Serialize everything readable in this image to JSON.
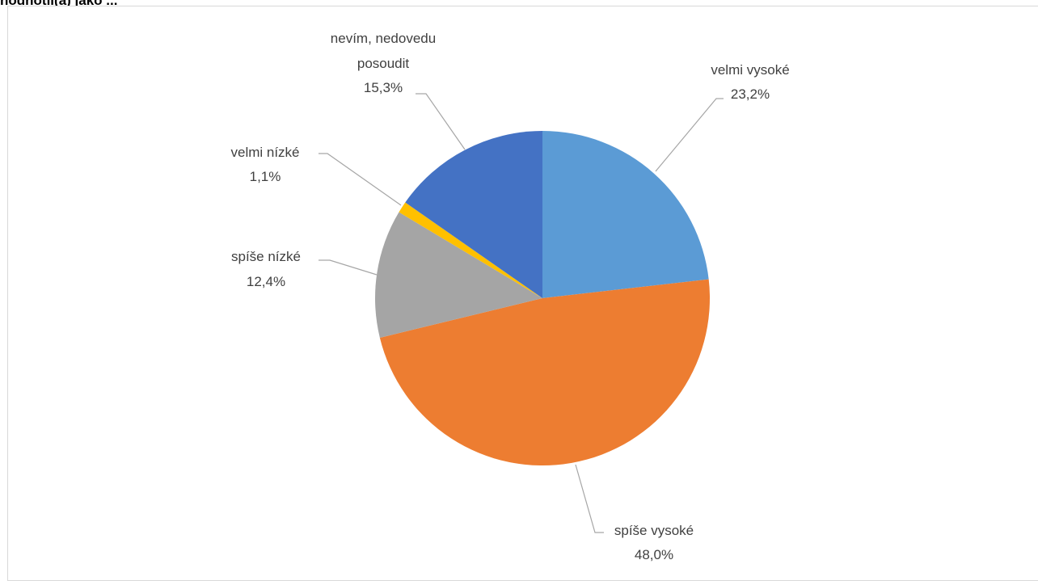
{
  "page": {
    "title": "hodnotil(a) jako ..."
  },
  "chart_data": {
    "type": "pie",
    "start_angle_deg": 0,
    "direction": "clockwise",
    "slices": [
      {
        "label": "velmi vysoké",
        "value": 23.2,
        "value_label": "23,2%",
        "color": "#5b9bd5"
      },
      {
        "label": "spíše vysoké",
        "value": 48.0,
        "value_label": "48,0%",
        "color": "#ed7d31"
      },
      {
        "label": "spíše nízké",
        "value": 12.4,
        "value_label": "12,4%",
        "color": "#a5a5a5"
      },
      {
        "label": "velmi nízké",
        "value": 1.1,
        "value_label": "1,1%",
        "color": "#ffc000"
      },
      {
        "label_lines": [
          "nevím, nedovedu",
          "posoudit"
        ],
        "value": 15.3,
        "value_label": "15,3%",
        "color": "#4472c4"
      }
    ]
  }
}
